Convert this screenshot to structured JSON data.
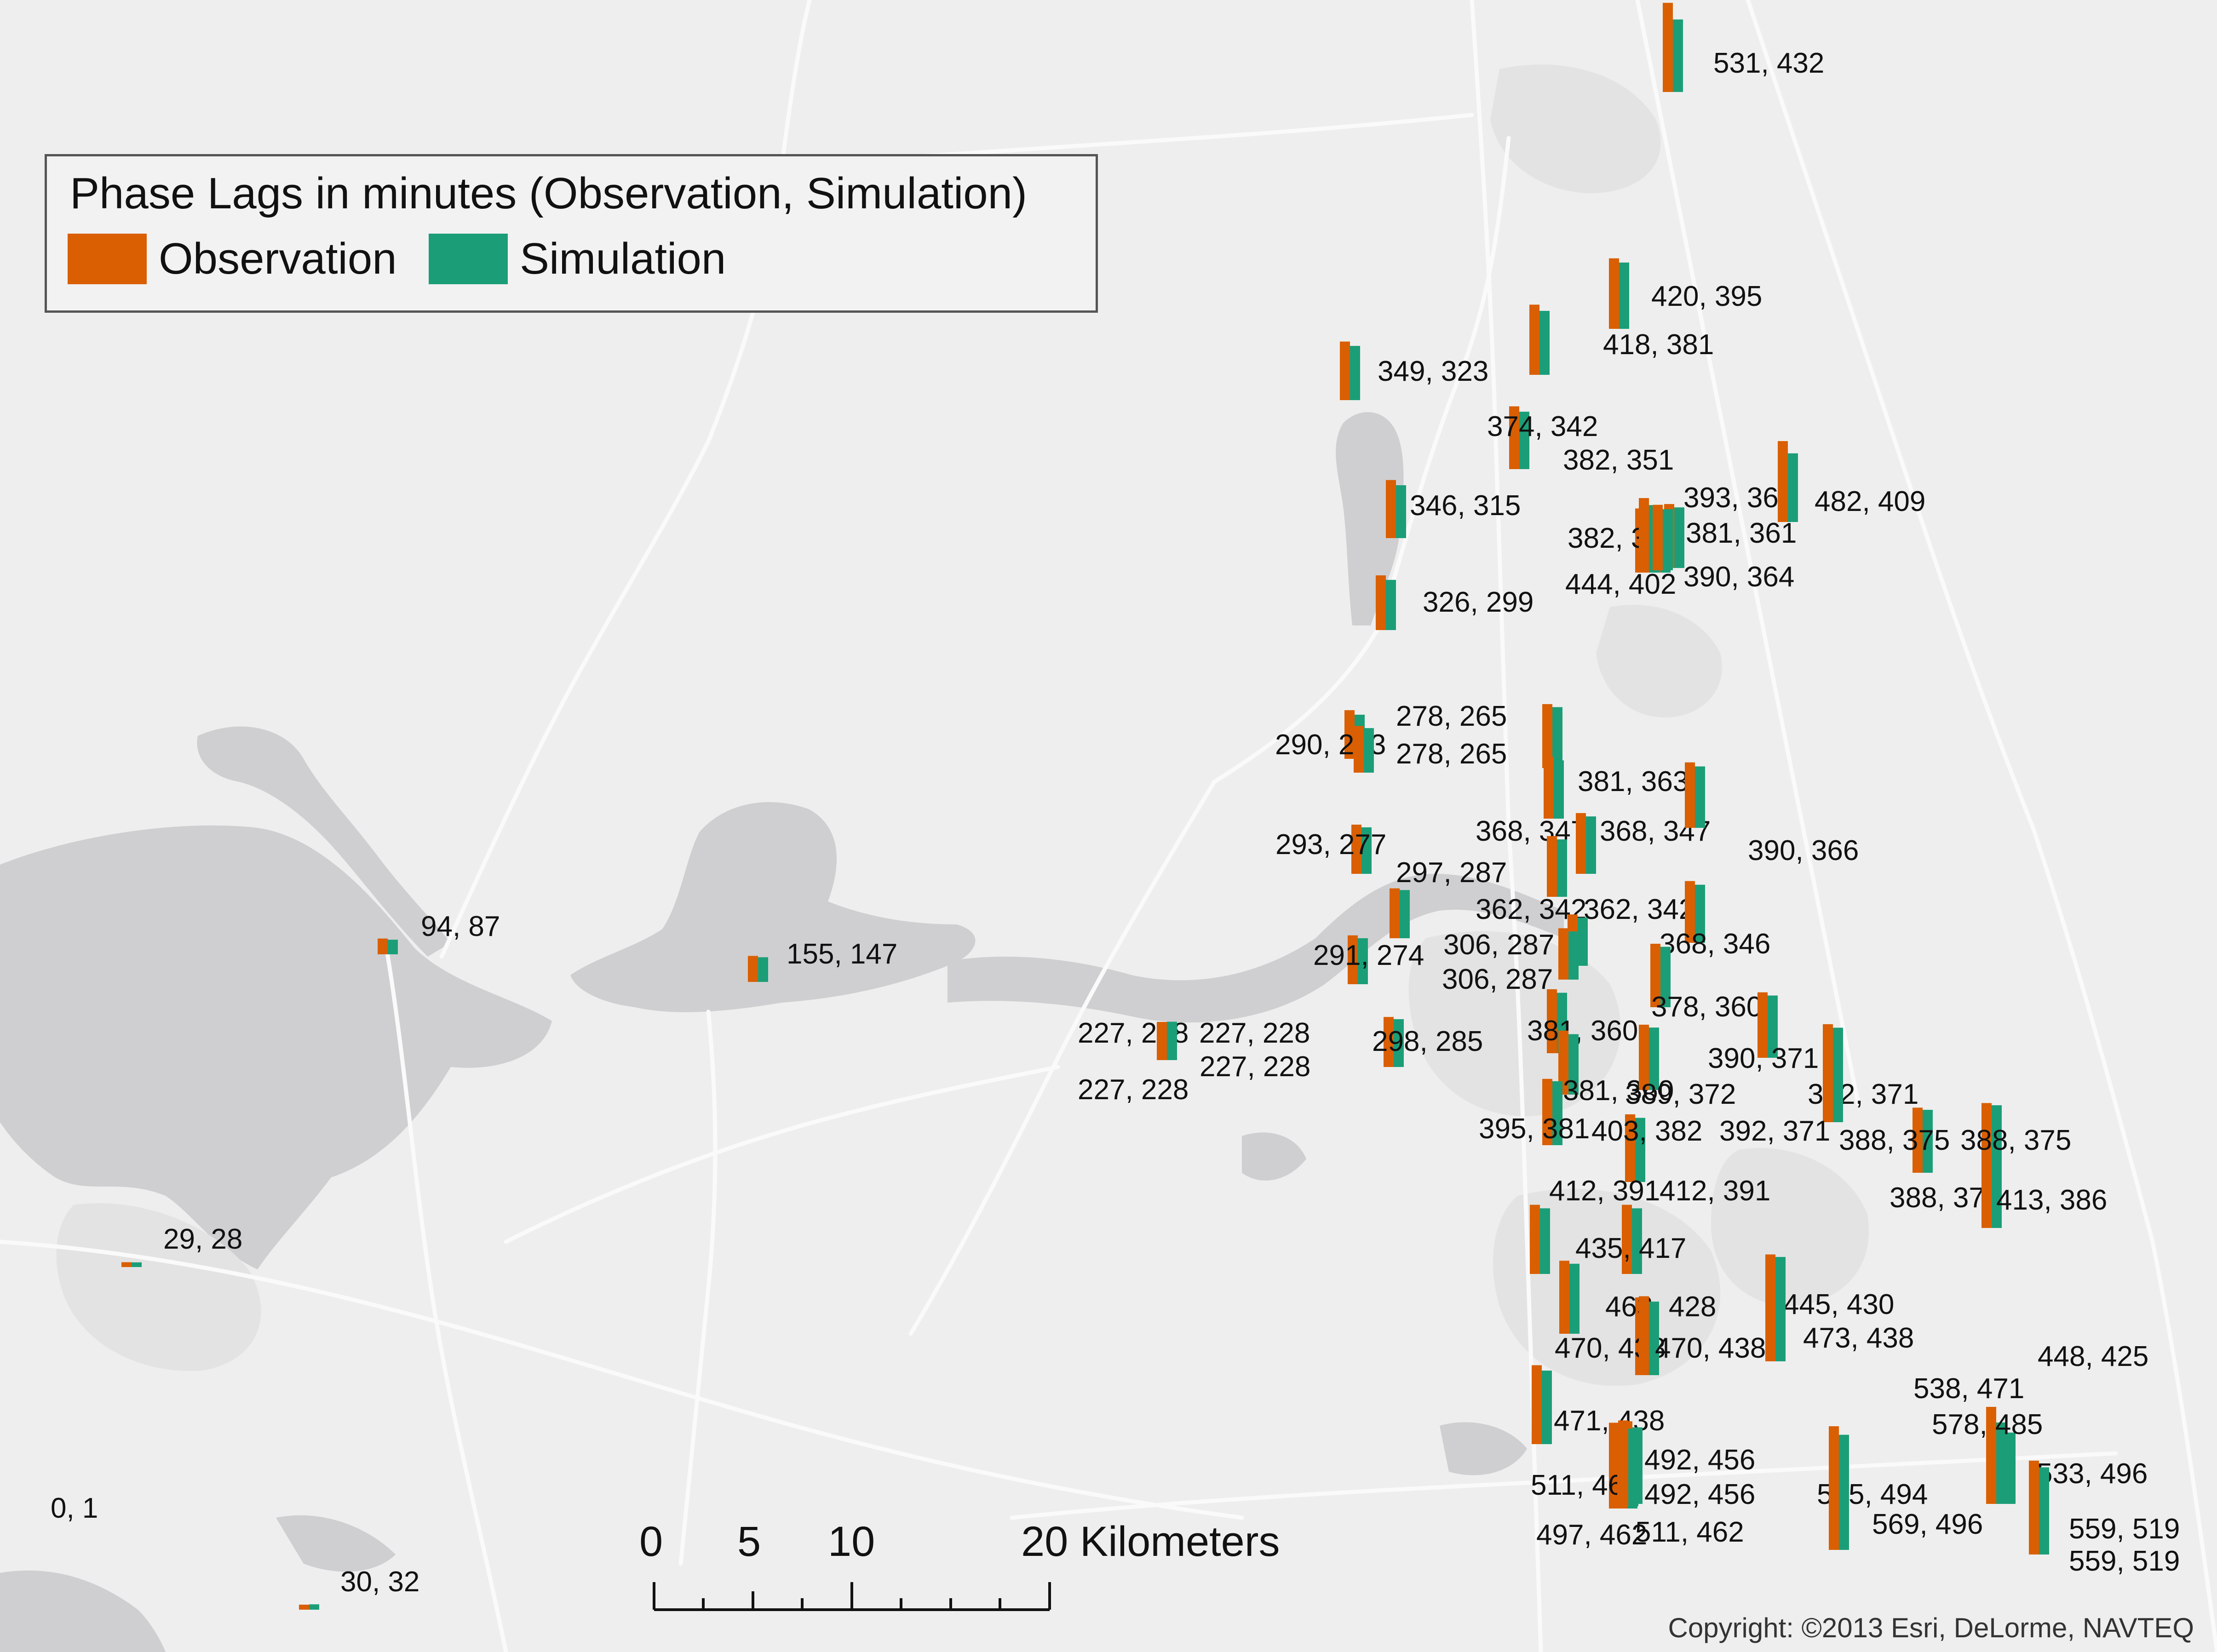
{
  "legend": {
    "title": "Phase Lags in minutes (Observation, Simulation)",
    "items": [
      {
        "label": "Observation",
        "color": "#d95f02"
      },
      {
        "label": "Simulation",
        "color": "#1b9e77"
      }
    ]
  },
  "scale_bar": {
    "labels": [
      "0",
      "5",
      "10",
      "20 Kilometers"
    ]
  },
  "copyright": "Copyright: ©2013 Esri, DeLorme, NAVTEQ",
  "stations": [
    {
      "label": "531, 432",
      "obs": 531,
      "sim": 432
    },
    {
      "label": "420, 395",
      "obs": 420,
      "sim": 395
    },
    {
      "label": "418, 381",
      "obs": 418,
      "sim": 381
    },
    {
      "label": "349, 323",
      "obs": 349,
      "sim": 323
    },
    {
      "label": "374, 342",
      "obs": 374,
      "sim": 342
    },
    {
      "label": "382, 351",
      "obs": 382,
      "sim": 351
    },
    {
      "label": "393, 365",
      "obs": 393,
      "sim": 365
    },
    {
      "label": "482, 409",
      "obs": 482,
      "sim": 409
    },
    {
      "label": "346, 315",
      "obs": 346,
      "sim": 315
    },
    {
      "label": "382, 356",
      "obs": 382,
      "sim": 356
    },
    {
      "label": "381, 361",
      "obs": 381,
      "sim": 361
    },
    {
      "label": "444, 402",
      "obs": 444,
      "sim": 402
    },
    {
      "label": "390, 364",
      "obs": 390,
      "sim": 364
    },
    {
      "label": "326, 299",
      "obs": 326,
      "sim": 299
    },
    {
      "label": "278, 265",
      "obs": 278,
      "sim": 265
    },
    {
      "label": "290, 263",
      "obs": 290,
      "sim": 263
    },
    {
      "label": "278, 265",
      "obs": 278,
      "sim": 265
    },
    {
      "label": "381, 363",
      "obs": 381,
      "sim": 363
    },
    {
      "label": "368, 347",
      "obs": 368,
      "sim": 347
    },
    {
      "label": "368, 347",
      "obs": 368,
      "sim": 347
    },
    {
      "label": "390, 366",
      "obs": 390,
      "sim": 366
    },
    {
      "label": "293, 277",
      "obs": 293,
      "sim": 277
    },
    {
      "label": "297, 287",
      "obs": 297,
      "sim": 287
    },
    {
      "label": "362, 342",
      "obs": 362,
      "sim": 342
    },
    {
      "label": "362, 342",
      "obs": 362,
      "sim": 342
    },
    {
      "label": "368, 346",
      "obs": 368,
      "sim": 346
    },
    {
      "label": "94, 87",
      "obs": 94,
      "sim": 87
    },
    {
      "label": "155, 147",
      "obs": 155,
      "sim": 147
    },
    {
      "label": "291, 274",
      "obs": 291,
      "sim": 274
    },
    {
      "label": "306, 287",
      "obs": 306,
      "sim": 287
    },
    {
      "label": "306, 287",
      "obs": 306,
      "sim": 287
    },
    {
      "label": "378, 360",
      "obs": 378,
      "sim": 360
    },
    {
      "label": "227, 228",
      "obs": 227,
      "sim": 228
    },
    {
      "label": "227, 228",
      "obs": 227,
      "sim": 228
    },
    {
      "label": "227, 228",
      "obs": 227,
      "sim": 228
    },
    {
      "label": "227, 228",
      "obs": 227,
      "sim": 228
    },
    {
      "label": "298, 285",
      "obs": 298,
      "sim": 285
    },
    {
      "label": "381, 360",
      "obs": 381,
      "sim": 360
    },
    {
      "label": "390, 371",
      "obs": 390,
      "sim": 371
    },
    {
      "label": "381, 360",
      "obs": 381,
      "sim": 360
    },
    {
      "label": "389, 372",
      "obs": 389,
      "sim": 372
    },
    {
      "label": "392, 371",
      "obs": 392,
      "sim": 371
    },
    {
      "label": "395, 381",
      "obs": 395,
      "sim": 381
    },
    {
      "label": "403, 382",
      "obs": 403,
      "sim": 382
    },
    {
      "label": "392, 371",
      "obs": 392,
      "sim": 371
    },
    {
      "label": "388, 375",
      "obs": 388,
      "sim": 375
    },
    {
      "label": "388, 375",
      "obs": 388,
      "sim": 375
    },
    {
      "label": "412, 391",
      "obs": 412,
      "sim": 391
    },
    {
      "label": "412, 391",
      "obs": 412,
      "sim": 391
    },
    {
      "label": "388, 375",
      "obs": 388,
      "sim": 375
    },
    {
      "label": "413, 386",
      "obs": 413,
      "sim": 386
    },
    {
      "label": "29, 28",
      "obs": 29,
      "sim": 28
    },
    {
      "label": "435, 417",
      "obs": 435,
      "sim": 417
    },
    {
      "label": "463, 428",
      "obs": 463,
      "sim": 428
    },
    {
      "label": "445, 430",
      "obs": 445,
      "sim": 430
    },
    {
      "label": "470, 438",
      "obs": 470,
      "sim": 438
    },
    {
      "label": "470, 438",
      "obs": 470,
      "sim": 438
    },
    {
      "label": "473, 438",
      "obs": 473,
      "sim": 438
    },
    {
      "label": "448, 425",
      "obs": 448,
      "sim": 425
    },
    {
      "label": "538, 471",
      "obs": 538,
      "sim": 471
    },
    {
      "label": "471, 438",
      "obs": 471,
      "sim": 438
    },
    {
      "label": "578, 485",
      "obs": 578,
      "sim": 485
    },
    {
      "label": "492, 456",
      "obs": 492,
      "sim": 456
    },
    {
      "label": "533, 496",
      "obs": 533,
      "sim": 496
    },
    {
      "label": "511, 462",
      "obs": 511,
      "sim": 462
    },
    {
      "label": "492, 456",
      "obs": 492,
      "sim": 456
    },
    {
      "label": "545, 494",
      "obs": 545,
      "sim": 494
    },
    {
      "label": "569, 496",
      "obs": 569,
      "sim": 496
    },
    {
      "label": "559, 519",
      "obs": 559,
      "sim": 519
    },
    {
      "label": "0, 1",
      "obs": 0,
      "sim": 1
    },
    {
      "label": "497, 462",
      "obs": 497,
      "sim": 462
    },
    {
      "label": "511, 462",
      "obs": 511,
      "sim": 462
    },
    {
      "label": "559, 519",
      "obs": 559,
      "sim": 519
    },
    {
      "label": "30, 32",
      "obs": 30,
      "sim": 32
    }
  ]
}
